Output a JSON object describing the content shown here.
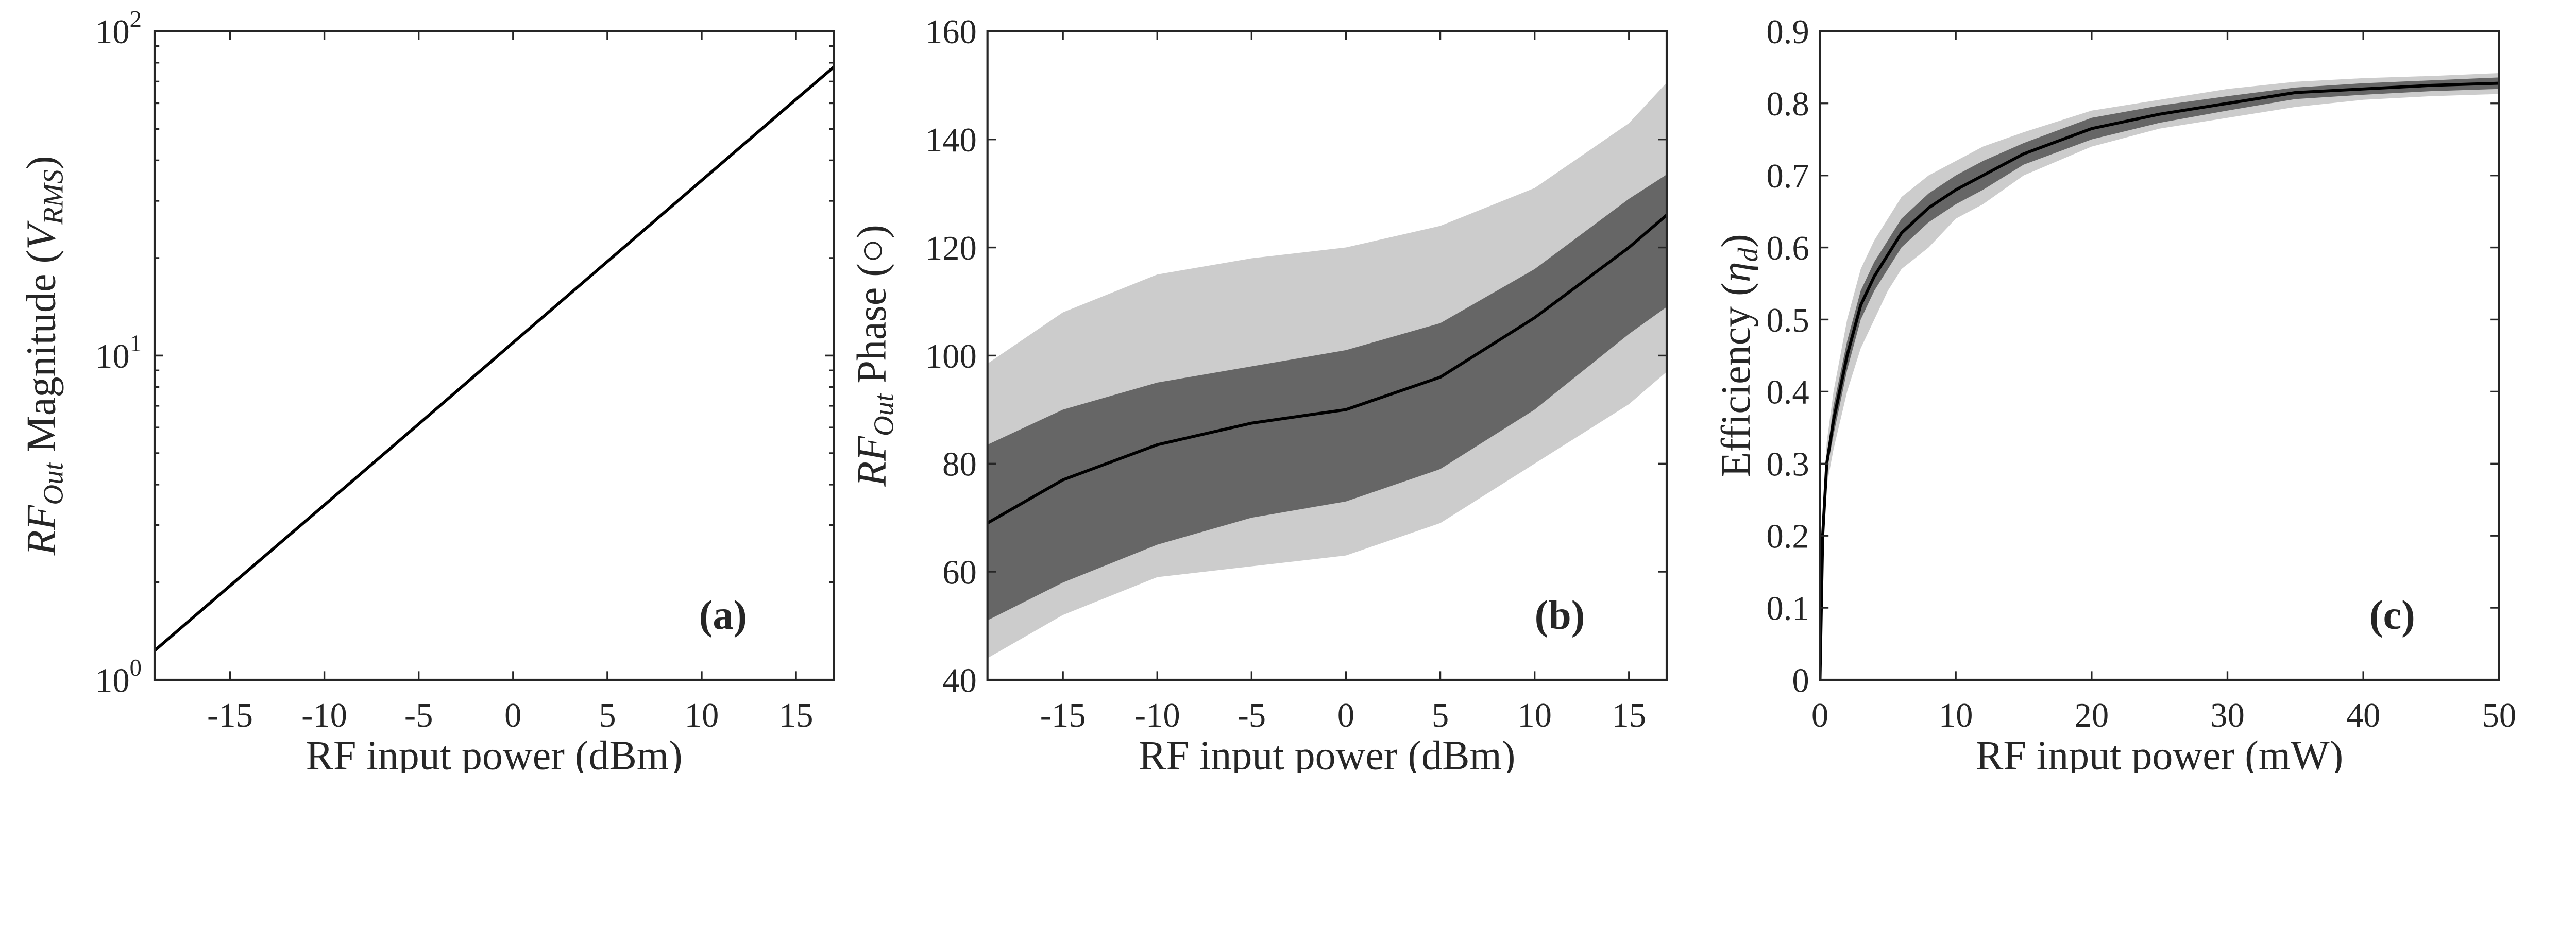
{
  "chart_data": [
    {
      "type": "line",
      "panel_label": "(a)",
      "xlabel": "RF input power (dBm)",
      "ylabel_parts": [
        {
          "t": "RF",
          "s": "italic"
        },
        {
          "t": "Out",
          "s": "sub"
        },
        {
          "t": " Magnitude (",
          "s": "normal"
        },
        {
          "t": "V",
          "s": "italic"
        },
        {
          "t": "RMS",
          "s": "sub"
        },
        {
          "t": ")",
          "s": "normal"
        }
      ],
      "xlim": [
        -19,
        17
      ],
      "ylim": [
        1,
        100
      ],
      "yscale": "log",
      "xticks": [
        "-15",
        "-10",
        "-5",
        "0",
        "5",
        "10",
        "15"
      ],
      "xtick_values": [
        -15,
        -10,
        -5,
        0,
        5,
        10,
        15
      ],
      "yticks": [
        {
          "base": "10",
          "exp": "0",
          "value": 1
        },
        {
          "base": "10",
          "exp": "1",
          "value": 10
        },
        {
          "base": "10",
          "exp": "2",
          "value": 100
        }
      ],
      "series": [
        {
          "role": "mean",
          "color": "#000000",
          "x": [
            -19,
            -17,
            -15,
            -10,
            -5,
            0,
            5,
            10,
            15,
            17
          ],
          "y": [
            1.23,
            1.55,
            1.95,
            3.46,
            6.15,
            10.96,
            19.5,
            34.7,
            61.7,
            77.6
          ]
        }
      ]
    },
    {
      "type": "area",
      "panel_label": "(b)",
      "xlabel": "RF input power (dBm)",
      "ylabel_parts": [
        {
          "t": "RF",
          "s": "italic"
        },
        {
          "t": "Out",
          "s": "sub"
        },
        {
          "t": " Phase (○)",
          "s": "normal"
        }
      ],
      "xlim": [
        -19,
        17
      ],
      "ylim": [
        40,
        160
      ],
      "xticks": [
        "-15",
        "-10",
        "-5",
        "0",
        "5",
        "10",
        "15"
      ],
      "xtick_values": [
        -15,
        -10,
        -5,
        0,
        5,
        10,
        15
      ],
      "yticks": [
        "40",
        "60",
        "80",
        "100",
        "120",
        "140",
        "160"
      ],
      "ytick_values": [
        40,
        60,
        80,
        100,
        120,
        140,
        160
      ],
      "x": [
        -19,
        -15,
        -10,
        -5,
        0,
        5,
        10,
        15,
        17
      ],
      "outer_band": {
        "color": "#cccccc",
        "upper": [
          98.5,
          108,
          115,
          118,
          120,
          124,
          131,
          143,
          150.5
        ],
        "lower": [
          44,
          52,
          59,
          61,
          63,
          69,
          80,
          91,
          97
        ]
      },
      "inner_band": {
        "color": "#666666",
        "upper": [
          83.5,
          90,
          95,
          98,
          101,
          106,
          116,
          129,
          133.5
        ],
        "lower": [
          51,
          58,
          65,
          70,
          73,
          79,
          90,
          104,
          109
        ]
      },
      "mean": {
        "color": "#000000",
        "y": [
          69,
          77,
          83.5,
          87.5,
          90,
          96,
          107,
          120,
          126
        ]
      }
    },
    {
      "type": "area",
      "panel_label": "(c)",
      "xlabel": "RF input power (mW)",
      "ylabel_parts": [
        {
          "t": "Efficiency (",
          "s": "normal"
        },
        {
          "t": "η",
          "s": "italic"
        },
        {
          "t": "d",
          "s": "sub"
        },
        {
          "t": ")",
          "s": "normal"
        }
      ],
      "xlim": [
        0,
        50
      ],
      "ylim": [
        0,
        0.9
      ],
      "xticks": [
        "0",
        "10",
        "20",
        "30",
        "40",
        "50"
      ],
      "xtick_values": [
        0,
        10,
        20,
        30,
        40,
        50
      ],
      "yticks": [
        "0",
        "0.1",
        "0.2",
        "0.3",
        "0.4",
        "0.5",
        "0.6",
        "0.7",
        "0.8",
        "0.9"
      ],
      "ytick_values": [
        0,
        0.1,
        0.2,
        0.3,
        0.4,
        0.5,
        0.6,
        0.7,
        0.8,
        0.9
      ],
      "x": [
        0,
        0.2,
        0.5,
        1,
        2,
        3,
        4,
        5,
        6,
        8,
        10,
        12,
        15,
        20,
        25,
        30,
        35,
        40,
        45,
        50
      ],
      "outer_band": {
        "color": "#cccccc",
        "upper": [
          0,
          0.23,
          0.33,
          0.4,
          0.5,
          0.57,
          0.61,
          0.64,
          0.67,
          0.7,
          0.72,
          0.74,
          0.76,
          0.79,
          0.805,
          0.82,
          0.83,
          0.835,
          0.838,
          0.842
        ],
        "lower": [
          0,
          0.17,
          0.27,
          0.32,
          0.4,
          0.46,
          0.5,
          0.54,
          0.57,
          0.6,
          0.64,
          0.66,
          0.7,
          0.74,
          0.765,
          0.78,
          0.795,
          0.805,
          0.81,
          0.813
        ]
      },
      "inner_band": {
        "color": "#666666",
        "upper": [
          0,
          0.21,
          0.31,
          0.38,
          0.47,
          0.54,
          0.58,
          0.61,
          0.64,
          0.675,
          0.7,
          0.72,
          0.745,
          0.78,
          0.797,
          0.81,
          0.822,
          0.828,
          0.832,
          0.836
        ],
        "lower": [
          0,
          0.19,
          0.29,
          0.34,
          0.43,
          0.5,
          0.54,
          0.57,
          0.6,
          0.635,
          0.66,
          0.68,
          0.715,
          0.75,
          0.773,
          0.79,
          0.806,
          0.812,
          0.817,
          0.82
        ]
      },
      "mean": {
        "color": "#000000",
        "y": [
          0,
          0.2,
          0.3,
          0.36,
          0.45,
          0.52,
          0.56,
          0.59,
          0.62,
          0.655,
          0.68,
          0.7,
          0.73,
          0.765,
          0.785,
          0.8,
          0.815,
          0.82,
          0.825,
          0.828
        ]
      }
    }
  ]
}
